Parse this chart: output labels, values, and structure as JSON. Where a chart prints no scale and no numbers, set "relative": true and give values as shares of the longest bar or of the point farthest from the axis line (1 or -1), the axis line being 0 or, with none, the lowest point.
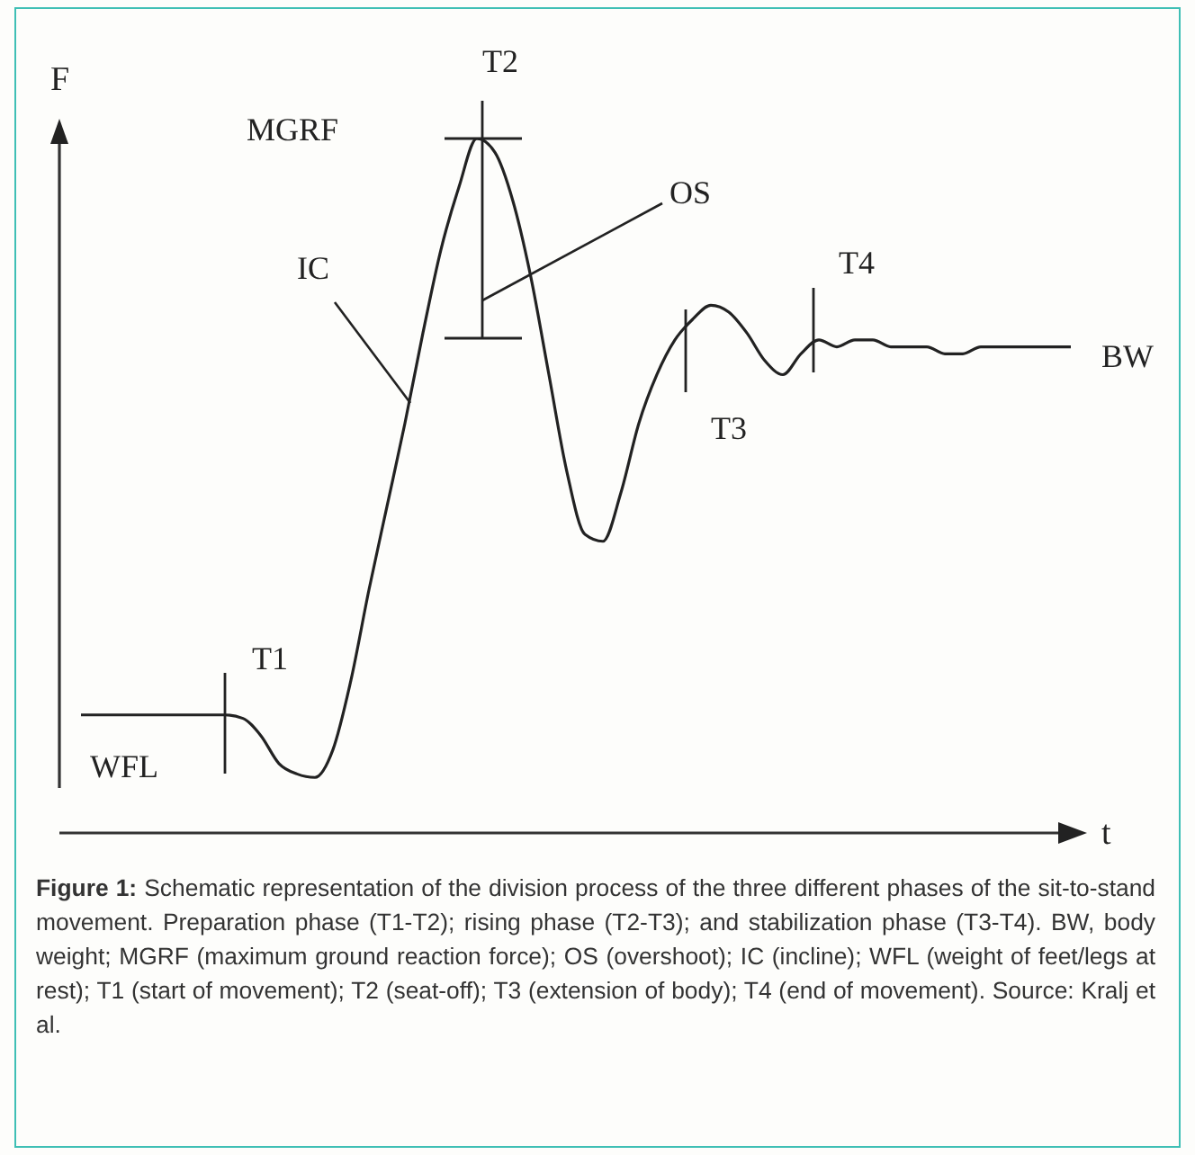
{
  "chart_data": {
    "type": "line",
    "title": "Figure 1:",
    "xlabel": "t",
    "ylabel": "F",
    "relative": true,
    "line_style": "solid",
    "categories": [
      null,
      null,
      null,
      null,
      null,
      null,
      null,
      null,
      null,
      null,
      null,
      null,
      null,
      null,
      null,
      null,
      null,
      null,
      null,
      null,
      null,
      null,
      null,
      null,
      null,
      null,
      null,
      null,
      null,
      null,
      null,
      null,
      null,
      null,
      null,
      null,
      null,
      null,
      null,
      null,
      null,
      null,
      null,
      null,
      null,
      null,
      null,
      null,
      null,
      null,
      null,
      null,
      null,
      null,
      null,
      null
    ],
    "series": [
      {
        "color": "#222222",
        "values": [
          0.17,
          0.17,
          0.17,
          0.17,
          0.17,
          0.17,
          0.17,
          0.17,
          0.17,
          0.165,
          0.14,
          0.1,
          0.085,
          0.08,
          0.12,
          0.22,
          0.35,
          0.47,
          0.59,
          0.72,
          0.84,
          0.93,
          1,
          0.98,
          0.91,
          0.8,
          0.66,
          0.52,
          0.43,
          0.42,
          0.49,
          0.59,
          0.66,
          0.71,
          0.74,
          0.76,
          0.75,
          0.72,
          0.68,
          0.66,
          0.69,
          0.71,
          0.7,
          0.71,
          0.71,
          0.7,
          0.7,
          0.7,
          0.69,
          0.69,
          0.7,
          0.7,
          0.7,
          0.7,
          0.7,
          0.7
        ]
      }
    ],
    "annotations": [
      "T1",
      "T2",
      "T3",
      "T4",
      "MGRF",
      "OS",
      "IC",
      "WFL",
      "BW",
      "Schematic representation of the division process of the three different phases of the sit-to-stand movement. Preparation phase (T1-T2); rising phase (T2-T3); and stabilization phase (T3-T4). BW, body weight; MGRF (maximum ground reaction force); OS (overshoot); IC (incline); WFL (weight of feet/legs at rest); T1 (start of movement); T2 (seat-off); T3 (extension of body); T4 (end of movement). Source: Kralj et al."
    ]
  }
}
